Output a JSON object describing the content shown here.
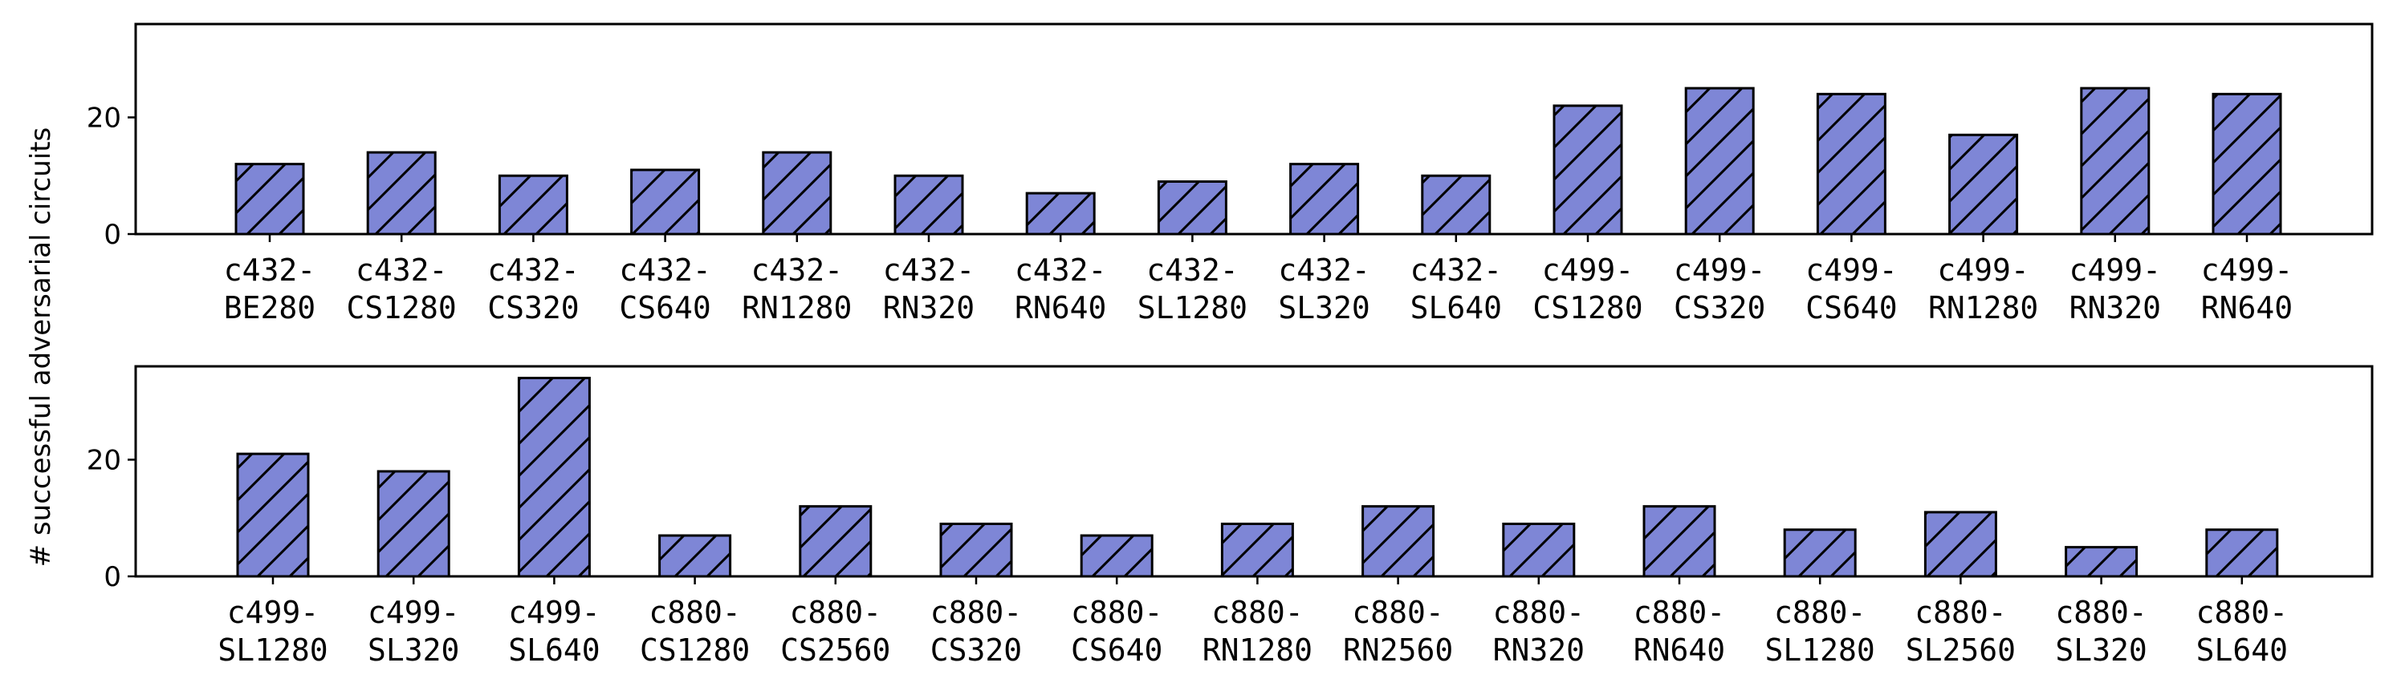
{
  "chart_data": [
    {
      "type": "bar",
      "ylabel": "# successful adversarial circuits",
      "ylim": [
        0,
        36
      ],
      "yticks": [
        0,
        20
      ],
      "grid": false,
      "bar_color": "#7e86d6",
      "hatch": "/",
      "categories": [
        [
          "c432-",
          "BE280"
        ],
        [
          "c432-",
          "CS1280"
        ],
        [
          "c432-",
          "CS320"
        ],
        [
          "c432-",
          "CS640"
        ],
        [
          "c432-",
          "RN1280"
        ],
        [
          "c432-",
          "RN320"
        ],
        [
          "c432-",
          "RN640"
        ],
        [
          "c432-",
          "SL1280"
        ],
        [
          "c432-",
          "SL320"
        ],
        [
          "c432-",
          "SL640"
        ],
        [
          "c499-",
          "CS1280"
        ],
        [
          "c499-",
          "CS320"
        ],
        [
          "c499-",
          "CS640"
        ],
        [
          "c499-",
          "RN1280"
        ],
        [
          "c499-",
          "RN320"
        ],
        [
          "c499-",
          "RN640"
        ]
      ],
      "values": [
        12,
        14,
        10,
        11,
        14,
        10,
        7,
        9,
        12,
        10,
        22,
        25,
        24,
        17,
        25,
        24
      ]
    },
    {
      "type": "bar",
      "ylabel": "# successful adversarial circuits",
      "ylim": [
        0,
        36
      ],
      "yticks": [
        0,
        20
      ],
      "grid": false,
      "bar_color": "#7e86d6",
      "hatch": "/",
      "categories": [
        [
          "c499-",
          "SL1280"
        ],
        [
          "c499-",
          "SL320"
        ],
        [
          "c499-",
          "SL640"
        ],
        [
          "c880-",
          "CS1280"
        ],
        [
          "c880-",
          "CS2560"
        ],
        [
          "c880-",
          "CS320"
        ],
        [
          "c880-",
          "CS640"
        ],
        [
          "c880-",
          "RN1280"
        ],
        [
          "c880-",
          "RN2560"
        ],
        [
          "c880-",
          "RN320"
        ],
        [
          "c880-",
          "RN640"
        ],
        [
          "c880-",
          "SL1280"
        ],
        [
          "c880-",
          "SL2560"
        ],
        [
          "c880-",
          "SL320"
        ],
        [
          "c880-",
          "SL640"
        ]
      ],
      "values": [
        21,
        18,
        34,
        7,
        12,
        9,
        7,
        9,
        12,
        9,
        12,
        8,
        11,
        5,
        8
      ]
    }
  ]
}
